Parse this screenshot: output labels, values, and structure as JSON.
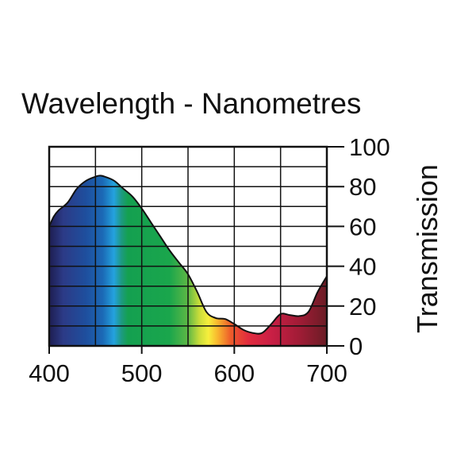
{
  "chart_data": {
    "type": "area",
    "title": "Wavelength - Nanometres",
    "xlabel": "Wavelength - Nanometres",
    "ylabel": "Transmission",
    "xlim": [
      400,
      700
    ],
    "ylim": [
      0,
      100
    ],
    "x_ticks": [
      400,
      500,
      600,
      700
    ],
    "y_ticks": [
      0,
      20,
      40,
      60,
      80,
      100
    ],
    "grid": true,
    "legend": "none",
    "series": [
      {
        "name": "Transmission",
        "x": [
          400,
          405,
          410,
          420,
          430,
          440,
          450,
          455,
          460,
          470,
          480,
          490,
          500,
          510,
          520,
          530,
          540,
          550,
          560,
          570,
          580,
          590,
          600,
          610,
          620,
          630,
          640,
          650,
          660,
          670,
          680,
          690,
          700
        ],
        "values": [
          60,
          65,
          68,
          72,
          79,
          83,
          85,
          85.5,
          85,
          83,
          79,
          75,
          69,
          62,
          55,
          48,
          42,
          36,
          27,
          17,
          14,
          13.5,
          11,
          8,
          6.5,
          6.5,
          11,
          16,
          15.5,
          15,
          17,
          27,
          35
        ]
      }
    ],
    "spectrum_colors": [
      {
        "x": 400,
        "color": "#1d1d50"
      },
      {
        "x": 415,
        "color": "#2c3a86"
      },
      {
        "x": 440,
        "color": "#1e4f9e"
      },
      {
        "x": 458,
        "color": "#1b6ab6"
      },
      {
        "x": 470,
        "color": "#24a2de"
      },
      {
        "x": 478,
        "color": "#1d9a82"
      },
      {
        "x": 485,
        "color": "#14a050"
      },
      {
        "x": 530,
        "color": "#1aa64c"
      },
      {
        "x": 550,
        "color": "#5eb845"
      },
      {
        "x": 562,
        "color": "#c8dc3a"
      },
      {
        "x": 572,
        "color": "#f7ef3c"
      },
      {
        "x": 582,
        "color": "#f8b62e"
      },
      {
        "x": 596,
        "color": "#ee5c2a"
      },
      {
        "x": 615,
        "color": "#e22c3e"
      },
      {
        "x": 640,
        "color": "#c91f45"
      },
      {
        "x": 670,
        "color": "#a11c36"
      },
      {
        "x": 700,
        "color": "#6a1c25"
      }
    ]
  }
}
